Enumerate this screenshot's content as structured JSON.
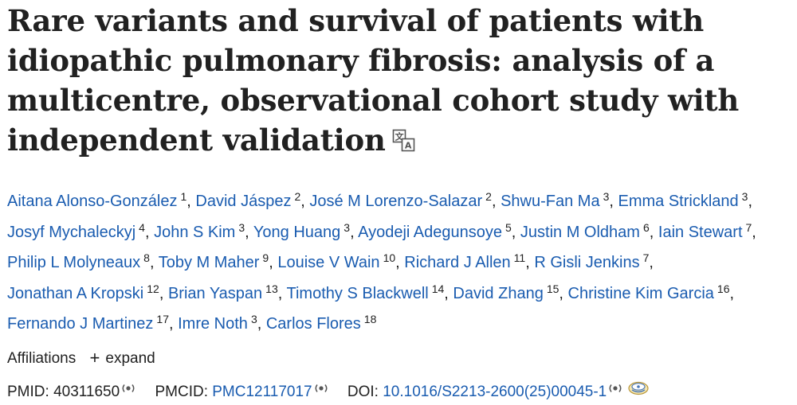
{
  "article": {
    "title": "Rare variants and survival of patients with idiopathic pulmonary fibrosis: analysis of a multicentre, observational cohort study with independent validation"
  },
  "authors": [
    {
      "name": "Aitana Alonso-González",
      "aff": "1"
    },
    {
      "name": "David Jáspez",
      "aff": "2"
    },
    {
      "name": "José M Lorenzo-Salazar",
      "aff": "2"
    },
    {
      "name": "Shwu-Fan Ma",
      "aff": "3"
    },
    {
      "name": "Emma Strickland",
      "aff": "3"
    },
    {
      "name": "Josyf Mychaleckyj",
      "aff": "4"
    },
    {
      "name": "John S Kim",
      "aff": "3"
    },
    {
      "name": "Yong Huang",
      "aff": "3"
    },
    {
      "name": "Ayodeji Adegunsoye",
      "aff": "5"
    },
    {
      "name": "Justin M Oldham",
      "aff": "6"
    },
    {
      "name": "Iain Stewart",
      "aff": "7"
    },
    {
      "name": "Philip L Molyneaux",
      "aff": "8"
    },
    {
      "name": "Toby M Maher",
      "aff": "9"
    },
    {
      "name": "Louise V Wain",
      "aff": "10"
    },
    {
      "name": "Richard J Allen",
      "aff": "11"
    },
    {
      "name": "R Gisli Jenkins",
      "aff": "7"
    },
    {
      "name": "Jonathan A Kropski",
      "aff": "12"
    },
    {
      "name": "Brian Yaspan",
      "aff": "13"
    },
    {
      "name": "Timothy S Blackwell",
      "aff": "14"
    },
    {
      "name": "David Zhang",
      "aff": "15"
    },
    {
      "name": "Christine Kim Garcia",
      "aff": "16"
    },
    {
      "name": "Fernando J Martinez",
      "aff": "17"
    },
    {
      "name": "Imre Noth",
      "aff": "3"
    },
    {
      "name": "Carlos Flores",
      "aff": "18"
    }
  ],
  "affiliations": {
    "label": "Affiliations",
    "expand_label": "expand"
  },
  "identifiers": {
    "pmid_label": "PMID:",
    "pmid_value": "40311650",
    "pmcid_label": "PMCID:",
    "pmcid_value": "PMC12117017",
    "doi_label": "DOI:",
    "doi_value": "10.1016/S2213-2600(25)00045-1"
  },
  "colors": {
    "link": "#1a5cb0",
    "text": "#212121"
  },
  "icons": {
    "translate": "translate-icon",
    "copy": "copy-icon",
    "full_text": "full-text-link-icon"
  }
}
